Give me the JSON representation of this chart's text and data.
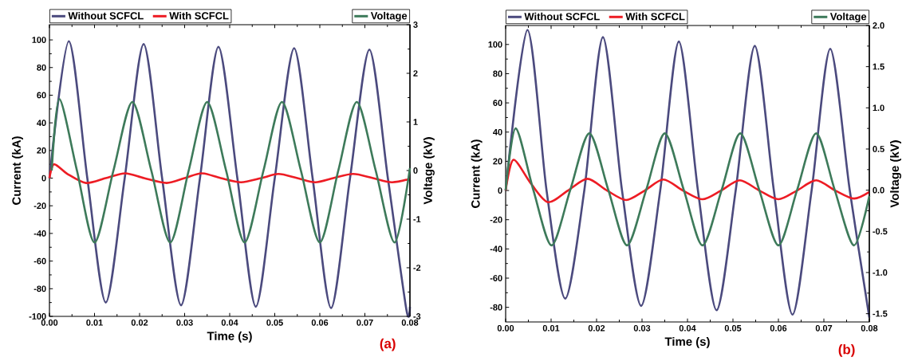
{
  "chart_data": [
    {
      "type": "line",
      "xlabel": "Time (s)",
      "ylabel": "Current (kA)",
      "y2label": "Voltage (kV)",
      "annotations": [
        "(a)"
      ],
      "legend": "top",
      "xlim": [
        0,
        0.08
      ],
      "xticks": [
        {
          "value": 0,
          "label": "0.00"
        },
        {
          "value": 0.01,
          "label": "0.01"
        },
        {
          "value": 0.02,
          "label": "0.02"
        },
        {
          "value": 0.03,
          "label": "0.03"
        },
        {
          "value": 0.04,
          "label": "0.04"
        },
        {
          "value": 0.05,
          "label": "0.05"
        },
        {
          "value": 0.06,
          "label": "0.06"
        },
        {
          "value": 0.07,
          "label": "0.07"
        },
        {
          "value": 0.08,
          "label": "0.08"
        }
      ],
      "ylim": [
        -100,
        111
      ],
      "yticks": [
        -100,
        -80,
        -60,
        -40,
        -20,
        0,
        20,
        40,
        60,
        80,
        100
      ],
      "y2lim": [
        -3,
        3
      ],
      "y2ticks": [
        -3,
        -2,
        -1,
        0,
        1,
        2,
        3
      ],
      "series": [
        {
          "name": "Without SCFCL",
          "color": "#4b4a7e",
          "x": [
            0,
            0.0043,
            0.0084,
            0.0125,
            0.0167,
            0.0209,
            0.025,
            0.0292,
            0.0334,
            0.0375,
            0.0417,
            0.0458,
            0.05,
            0.0543,
            0.0584,
            0.0625,
            0.0667,
            0.071,
            0.0751,
            0.0792,
            0.08
          ],
          "values": [
            0,
            99,
            0,
            -90,
            0,
            97,
            0,
            -92,
            0,
            95,
            0,
            -93,
            0,
            94,
            0,
            -94,
            0,
            93,
            0,
            -95,
            -93
          ]
        },
        {
          "name": "With SCFCL",
          "color": "#ed1c24",
          "x": [
            0,
            0.001,
            0.004,
            0.0081,
            0.0125,
            0.0168,
            0.021,
            0.026,
            0.03,
            0.0338,
            0.038,
            0.0425,
            0.047,
            0.0508,
            0.055,
            0.059,
            0.063,
            0.0674,
            0.0718,
            0.076,
            0.08
          ],
          "values": [
            0,
            10,
            3,
            -3.5,
            0,
            3.5,
            0,
            -3.5,
            0,
            3.5,
            0,
            -3,
            0,
            3,
            0,
            -3,
            0,
            3,
            0,
            -3,
            -0.5
          ]
        },
        {
          "name": "Voltage",
          "color": "#3d7a5a",
          "axis": "y2",
          "x": [
            0.0005,
            0.0022,
            0.0061,
            0.01,
            0.0142,
            0.0184,
            0.0226,
            0.0268,
            0.0309,
            0.035,
            0.0392,
            0.0433,
            0.0475,
            0.0516,
            0.0558,
            0.06,
            0.0641,
            0.0682,
            0.0724,
            0.0766,
            0.08
          ],
          "values": [
            0,
            1.47,
            0,
            -1.48,
            0,
            1.41,
            0,
            -1.48,
            0,
            1.41,
            0,
            -1.48,
            0,
            1.41,
            0,
            -1.48,
            0,
            1.41,
            0,
            -1.48,
            0.05
          ]
        }
      ]
    },
    {
      "type": "line",
      "xlabel": "Time (s)",
      "ylabel": "Current (kA)",
      "y2label": "Voltage (kV)",
      "annotations": [
        "(b)"
      ],
      "legend": "top",
      "xlim": [
        0,
        0.08
      ],
      "xticks": [
        {
          "value": 0,
          "label": "0.00"
        },
        {
          "value": 0.01,
          "label": "0.01"
        },
        {
          "value": 0.02,
          "label": "0.02"
        },
        {
          "value": 0.03,
          "label": "0.03"
        },
        {
          "value": 0.04,
          "label": "0.04"
        },
        {
          "value": 0.05,
          "label": "0.05"
        },
        {
          "value": 0.06,
          "label": "0.06"
        },
        {
          "value": 0.07,
          "label": "0.07"
        },
        {
          "value": 0.08,
          "label": "0.08"
        }
      ],
      "ylim": [
        -90,
        113
      ],
      "yticks": [
        -80,
        -60,
        -40,
        -20,
        0,
        20,
        40,
        60,
        80,
        100
      ],
      "y2lim": [
        -1.6,
        2.0
      ],
      "y2ticks": [
        {
          "value": -1.5,
          "label": "-1.5"
        },
        {
          "value": -1,
          "label": "-1.0"
        },
        {
          "value": -0.5,
          "label": "-0.5"
        },
        {
          "value": 0,
          "label": "0.0"
        },
        {
          "value": 0.5,
          "label": "0.5"
        },
        {
          "value": 1,
          "label": "1.0"
        },
        {
          "value": 1.5,
          "label": "1.5"
        },
        {
          "value": 2,
          "label": "2.0"
        }
      ],
      "series": [
        {
          "name": "Without SCFCL",
          "color": "#4b4a7e",
          "x": [
            0,
            0.0048,
            0.009,
            0.0131,
            0.0173,
            0.0214,
            0.0256,
            0.0298,
            0.034,
            0.0381,
            0.0423,
            0.0464,
            0.0506,
            0.0548,
            0.059,
            0.0631,
            0.0673,
            0.0714,
            0.0757,
            0.08
          ],
          "values": [
            0,
            110,
            0,
            -74,
            0,
            105,
            0,
            -79,
            0,
            102,
            0,
            -82,
            0,
            99,
            0,
            -85,
            0,
            97,
            0,
            -87
          ]
        },
        {
          "name": "With SCFCL",
          "color": "#ed1c24",
          "x": [
            0,
            0.0017,
            0.0055,
            0.0093,
            0.0137,
            0.018,
            0.0223,
            0.0265,
            0.0306,
            0.0347,
            0.039,
            0.0433,
            0.0474,
            0.0515,
            0.0558,
            0.06,
            0.0641,
            0.0683,
            0.0725,
            0.0766,
            0.08
          ],
          "values": [
            0,
            21,
            5,
            -8,
            0,
            8,
            0,
            -6.5,
            0,
            7.5,
            0,
            -6,
            0,
            7,
            0,
            -6,
            0,
            7,
            0,
            -5.5,
            -1
          ]
        },
        {
          "name": "Voltage",
          "color": "#3d7a5a",
          "axis": "y2",
          "x": [
            0,
            0.0022,
            0.0061,
            0.0101,
            0.0142,
            0.0184,
            0.0226,
            0.0267,
            0.0309,
            0.035,
            0.0392,
            0.0433,
            0.0475,
            0.0516,
            0.0558,
            0.06,
            0.0641,
            0.0683,
            0.0724,
            0.0766,
            0.08
          ],
          "values": [
            0,
            0.75,
            0,
            -0.67,
            0,
            0.69,
            0,
            -0.67,
            0,
            0.69,
            0,
            -0.67,
            0,
            0.69,
            0,
            -0.67,
            0,
            0.69,
            0,
            -0.67,
            -0.07
          ]
        }
      ]
    }
  ]
}
